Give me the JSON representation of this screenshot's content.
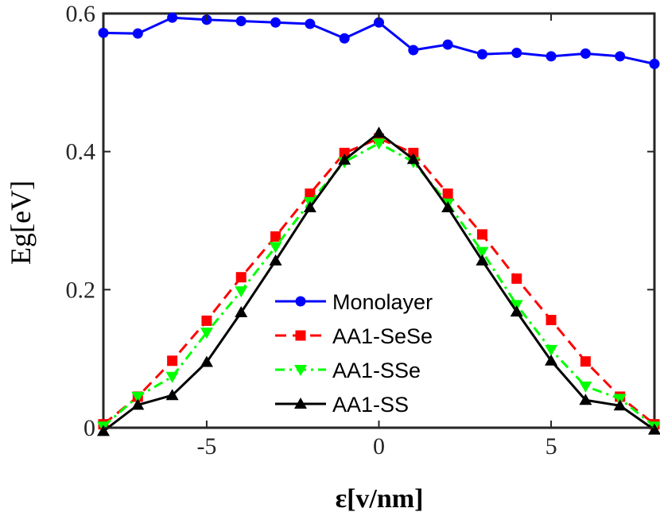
{
  "chart_data": {
    "type": "line",
    "title": "",
    "xlabel": "ɛ[v/nm]",
    "ylabel": "Eg[eV]",
    "xlim": [
      -8,
      8
    ],
    "ylim": [
      0,
      0.6
    ],
    "xticks": [
      -5,
      0,
      5
    ],
    "xtick_labels": [
      "-5",
      "0",
      "5"
    ],
    "yticks": [
      0,
      0.2,
      0.4,
      0.6
    ],
    "ytick_labels": [
      "0",
      "0.2",
      "0.4",
      "0.6"
    ],
    "grid": false,
    "legend_position": "lower-center",
    "x": [
      -8,
      -7,
      -6,
      -5,
      -4,
      -3,
      -2,
      -1,
      0,
      1,
      2,
      3,
      4,
      5,
      6,
      7,
      8
    ],
    "series": [
      {
        "name": "Monolayer",
        "color": "#0000ff",
        "line_style": "solid",
        "marker": "circle",
        "values": [
          0.572,
          0.571,
          0.594,
          0.591,
          0.589,
          0.587,
          0.585,
          0.564,
          0.587,
          0.547,
          0.555,
          0.541,
          0.543,
          0.538,
          0.542,
          0.538,
          0.527
        ]
      },
      {
        "name": "AA1-SeSe",
        "color": "#ff0000",
        "line_style": "dashed",
        "marker": "square",
        "values": [
          0.005,
          0.045,
          0.097,
          0.155,
          0.218,
          0.277,
          0.339,
          0.398,
          0.419,
          0.398,
          0.339,
          0.28,
          0.216,
          0.156,
          0.096,
          0.045,
          0.005
        ]
      },
      {
        "name": "AA1-SSe",
        "color": "#00ff00",
        "line_style": "dashdot",
        "marker": "triangle-down",
        "values": [
          0.002,
          0.045,
          0.074,
          0.138,
          0.198,
          0.262,
          0.327,
          0.385,
          0.412,
          0.385,
          0.325,
          0.255,
          0.178,
          0.113,
          0.06,
          0.042,
          0.002
        ]
      },
      {
        "name": "AA1-SS",
        "color": "#000000",
        "line_style": "solid",
        "marker": "triangle-up",
        "values": [
          -0.005,
          0.033,
          0.047,
          0.095,
          0.167,
          0.242,
          0.319,
          0.388,
          0.427,
          0.389,
          0.319,
          0.242,
          0.168,
          0.097,
          0.04,
          0.032,
          -0.003
        ]
      }
    ]
  }
}
